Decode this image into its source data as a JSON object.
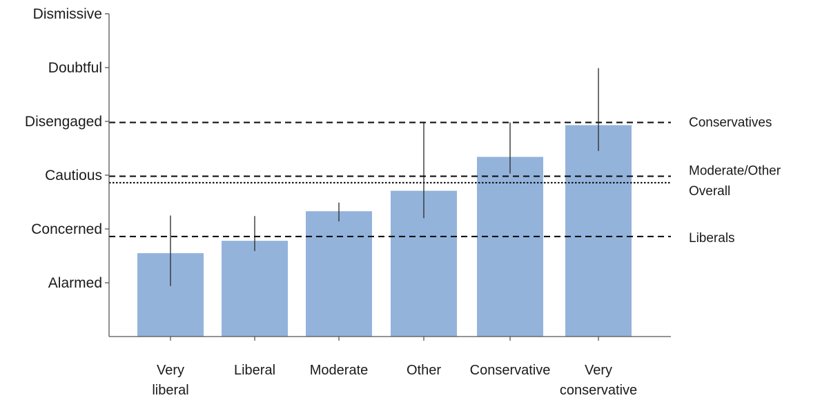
{
  "chart_data": {
    "type": "bar",
    "title": "",
    "xlabel": "",
    "ylabel": "",
    "y_categories": [
      "Alarmed",
      "Concerned",
      "Cautious",
      "Disengaged",
      "Doubtful",
      "Dismissive"
    ],
    "categories": [
      [
        "Very",
        "liberal"
      ],
      [
        "Liberal"
      ],
      [
        "Moderate"
      ],
      [
        "Other"
      ],
      [
        "Conservative"
      ],
      [
        "Very",
        "conservative"
      ]
    ],
    "values": [
      1.55,
      1.78,
      2.33,
      2.71,
      3.34,
      3.93
    ],
    "error_low": [
      0.94,
      1.59,
      2.14,
      2.2,
      3.03,
      3.45
    ],
    "error_high": [
      2.25,
      2.24,
      2.49,
      3.98,
      3.98,
      4.99
    ],
    "ylim": [
      0,
      6
    ],
    "bar_color": "#93b3db",
    "reference_lines": [
      {
        "label": "Conservatives",
        "value": 3.98,
        "style": "dashed"
      },
      {
        "label": "Moderate/Other",
        "value": 2.98,
        "style": "dashed"
      },
      {
        "label": "Overall",
        "value": 2.86,
        "style": "dotted"
      },
      {
        "label": "Liberals",
        "value": 1.86,
        "style": "dashed"
      }
    ],
    "grid": false,
    "legend": "right"
  }
}
